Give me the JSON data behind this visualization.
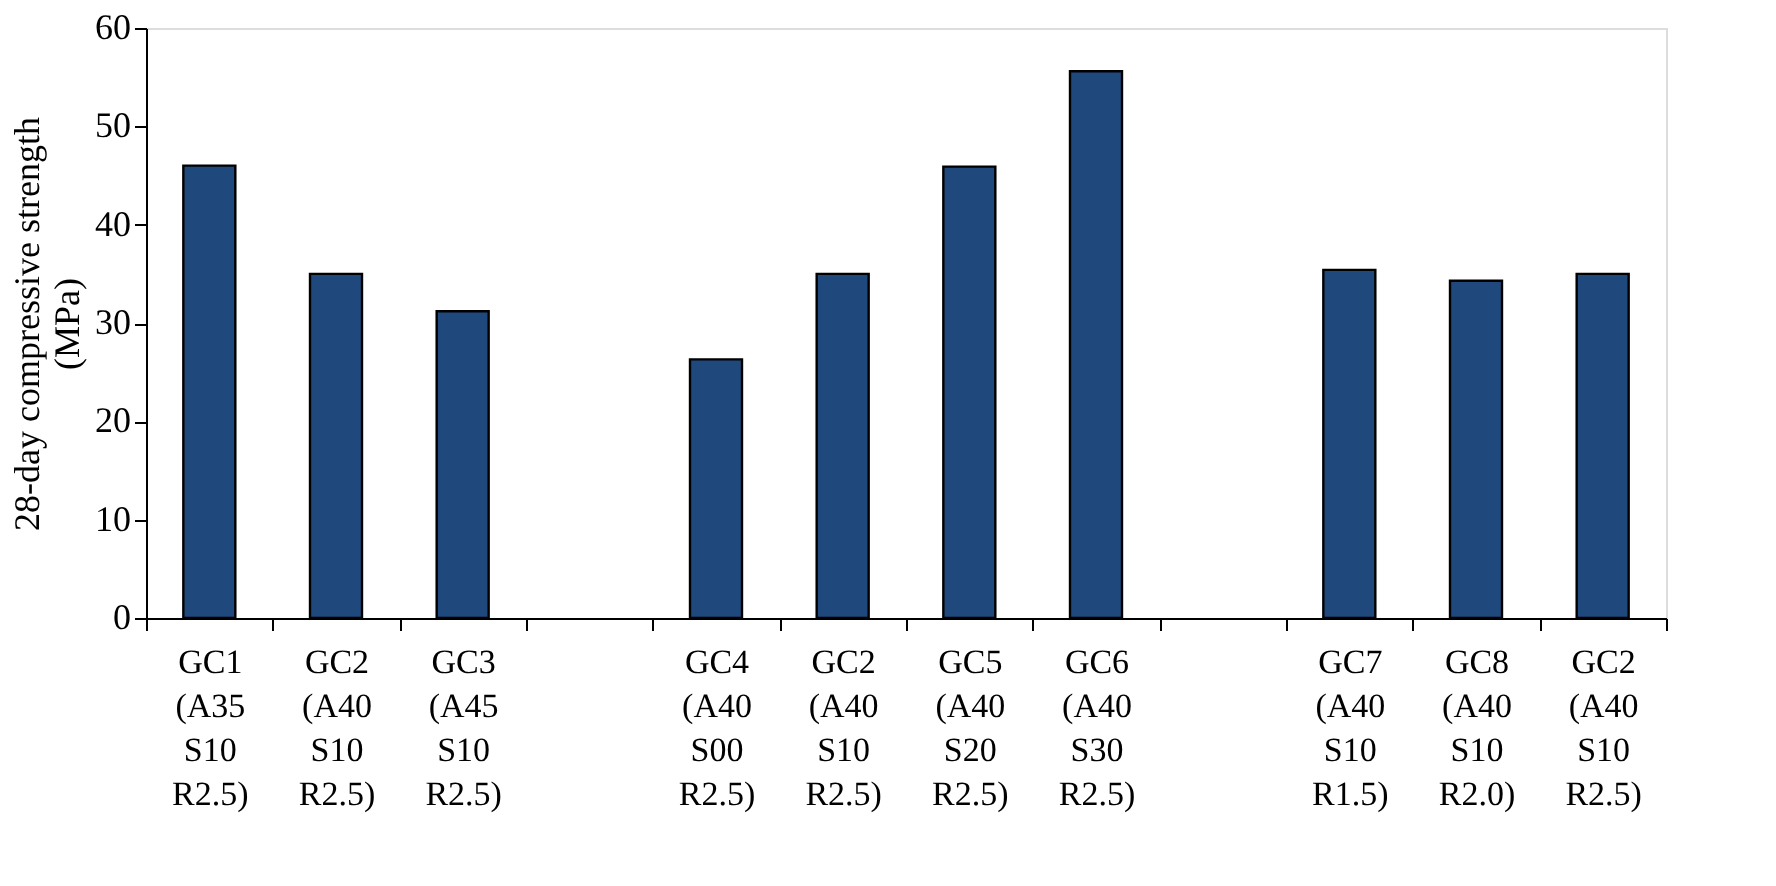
{
  "chart_data": {
    "type": "bar",
    "ylabel": "28-day compressive strength (MPa)",
    "categories": [
      "GC1 (A35 S10 R2.5)",
      "GC2 (A40 S10 R2.5)",
      "GC3 (A45 S10 R2.5)",
      null,
      "GC4 (A40 S00 R2.5)",
      "GC2 (A40 S10 R2.5)",
      "GC5 (A40 S20 R2.5)",
      "GC6 (A40 S30 R2.5)",
      null,
      "GC7 (A40 S10 R1.5)",
      "GC8 (A40 S10 R2.0)",
      "GC2 (A40 S10 R2.5)"
    ],
    "values": [
      46.0,
      35.0,
      31.2,
      null,
      26.3,
      35.0,
      45.9,
      55.6,
      null,
      35.4,
      34.3,
      35.0
    ],
    "color": "#1f497d",
    "ylim": [
      0,
      60
    ],
    "yticks": [
      0,
      10,
      20,
      30,
      40,
      50,
      60
    ],
    "grid": false
  }
}
